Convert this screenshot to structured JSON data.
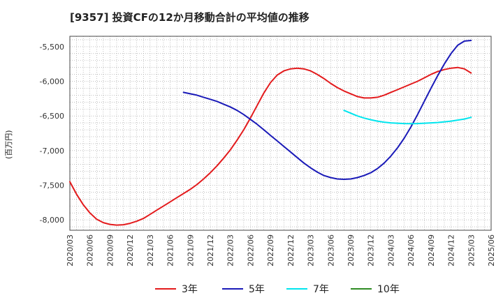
{
  "title": "[9357]  投資CFの12か月移動合計の平均値の推移",
  "y_unit_label": "(百万円)",
  "chart_data": {
    "type": "line",
    "title": "[9357]  投資CFの12か月移動合計の平均値の推移",
    "ylabel": "(百万円)",
    "ylim": [
      -8150,
      -5350
    ],
    "y_ticks": [
      -5500,
      -6000,
      -6500,
      -7000,
      -7500,
      -8000
    ],
    "y_tick_labels": [
      "-5,500",
      "-6,000",
      "-6,500",
      "-7,000",
      "-7,500",
      "-8,000"
    ],
    "x_tick_labels": [
      "2020/03",
      "2020/06",
      "2020/09",
      "2020/12",
      "2021/03",
      "2021/06",
      "2021/09",
      "2021/12",
      "2022/03",
      "2022/06",
      "2022/09",
      "2022/12",
      "2023/03",
      "2023/06",
      "2023/09",
      "2023/12",
      "2024/03",
      "2024/06",
      "2024/09",
      "2024/12",
      "2025/03",
      "2025/06"
    ],
    "grid": true,
    "legend_position": "bottom",
    "series": [
      {
        "name": "3年",
        "color": "#e31a1c",
        "points": [
          [
            "2020/03",
            -7450
          ],
          [
            "2020/04",
            -7630
          ],
          [
            "2020/05",
            -7780
          ],
          [
            "2020/06",
            -7900
          ],
          [
            "2020/07",
            -7990
          ],
          [
            "2020/08",
            -8040
          ],
          [
            "2020/09",
            -8065
          ],
          [
            "2020/10",
            -8075
          ],
          [
            "2020/11",
            -8070
          ],
          [
            "2020/12",
            -8050
          ],
          [
            "2021/01",
            -8020
          ],
          [
            "2021/02",
            -7980
          ],
          [
            "2021/03",
            -7920
          ],
          [
            "2021/04",
            -7860
          ],
          [
            "2021/05",
            -7800
          ],
          [
            "2021/06",
            -7740
          ],
          [
            "2021/07",
            -7680
          ],
          [
            "2021/08",
            -7620
          ],
          [
            "2021/09",
            -7560
          ],
          [
            "2021/10",
            -7490
          ],
          [
            "2021/11",
            -7410
          ],
          [
            "2021/12",
            -7320
          ],
          [
            "2022/01",
            -7220
          ],
          [
            "2022/02",
            -7110
          ],
          [
            "2022/03",
            -6990
          ],
          [
            "2022/04",
            -6850
          ],
          [
            "2022/05",
            -6700
          ],
          [
            "2022/06",
            -6530
          ],
          [
            "2022/07",
            -6350
          ],
          [
            "2022/08",
            -6170
          ],
          [
            "2022/09",
            -6020
          ],
          [
            "2022/10",
            -5910
          ],
          [
            "2022/11",
            -5850
          ],
          [
            "2022/12",
            -5820
          ],
          [
            "2023/01",
            -5810
          ],
          [
            "2023/02",
            -5820
          ],
          [
            "2023/03",
            -5850
          ],
          [
            "2023/04",
            -5900
          ],
          [
            "2023/05",
            -5960
          ],
          [
            "2023/06",
            -6030
          ],
          [
            "2023/07",
            -6090
          ],
          [
            "2023/08",
            -6140
          ],
          [
            "2023/09",
            -6180
          ],
          [
            "2023/10",
            -6220
          ],
          [
            "2023/11",
            -6240
          ],
          [
            "2023/12",
            -6240
          ],
          [
            "2024/01",
            -6230
          ],
          [
            "2024/02",
            -6200
          ],
          [
            "2024/03",
            -6160
          ],
          [
            "2024/04",
            -6120
          ],
          [
            "2024/05",
            -6080
          ],
          [
            "2024/06",
            -6040
          ],
          [
            "2024/07",
            -6000
          ],
          [
            "2024/08",
            -5950
          ],
          [
            "2024/09",
            -5900
          ],
          [
            "2024/10",
            -5860
          ],
          [
            "2024/11",
            -5830
          ],
          [
            "2024/12",
            -5810
          ],
          [
            "2025/01",
            -5800
          ],
          [
            "2025/02",
            -5820
          ],
          [
            "2025/03",
            -5880
          ]
        ]
      },
      {
        "name": "5年",
        "color": "#1a1ab8",
        "points": [
          [
            "2021/08",
            -6160
          ],
          [
            "2021/09",
            -6180
          ],
          [
            "2021/10",
            -6200
          ],
          [
            "2021/11",
            -6230
          ],
          [
            "2021/12",
            -6260
          ],
          [
            "2022/01",
            -6290
          ],
          [
            "2022/02",
            -6330
          ],
          [
            "2022/03",
            -6370
          ],
          [
            "2022/04",
            -6420
          ],
          [
            "2022/05",
            -6480
          ],
          [
            "2022/06",
            -6550
          ],
          [
            "2022/07",
            -6620
          ],
          [
            "2022/08",
            -6700
          ],
          [
            "2022/09",
            -6780
          ],
          [
            "2022/10",
            -6860
          ],
          [
            "2022/11",
            -6940
          ],
          [
            "2022/12",
            -7020
          ],
          [
            "2023/01",
            -7100
          ],
          [
            "2023/02",
            -7180
          ],
          [
            "2023/03",
            -7250
          ],
          [
            "2023/04",
            -7310
          ],
          [
            "2023/05",
            -7360
          ],
          [
            "2023/06",
            -7390
          ],
          [
            "2023/07",
            -7410
          ],
          [
            "2023/08",
            -7415
          ],
          [
            "2023/09",
            -7410
          ],
          [
            "2023/10",
            -7390
          ],
          [
            "2023/11",
            -7360
          ],
          [
            "2023/12",
            -7320
          ],
          [
            "2024/01",
            -7260
          ],
          [
            "2024/02",
            -7180
          ],
          [
            "2024/03",
            -7080
          ],
          [
            "2024/04",
            -6960
          ],
          [
            "2024/05",
            -6820
          ],
          [
            "2024/06",
            -6660
          ],
          [
            "2024/07",
            -6480
          ],
          [
            "2024/08",
            -6290
          ],
          [
            "2024/09",
            -6100
          ],
          [
            "2024/10",
            -5920
          ],
          [
            "2024/11",
            -5750
          ],
          [
            "2024/12",
            -5600
          ],
          [
            "2025/01",
            -5480
          ],
          [
            "2025/02",
            -5420
          ],
          [
            "2025/03",
            -5410
          ]
        ]
      },
      {
        "name": "7年",
        "color": "#00e5ee",
        "points": [
          [
            "2023/08",
            -6420
          ],
          [
            "2023/09",
            -6460
          ],
          [
            "2023/10",
            -6500
          ],
          [
            "2023/11",
            -6530
          ],
          [
            "2023/12",
            -6555
          ],
          [
            "2024/01",
            -6575
          ],
          [
            "2024/02",
            -6590
          ],
          [
            "2024/03",
            -6600
          ],
          [
            "2024/04",
            -6605
          ],
          [
            "2024/05",
            -6610
          ],
          [
            "2024/06",
            -6612
          ],
          [
            "2024/07",
            -6610
          ],
          [
            "2024/08",
            -6605
          ],
          [
            "2024/09",
            -6600
          ],
          [
            "2024/10",
            -6595
          ],
          [
            "2024/11",
            -6585
          ],
          [
            "2024/12",
            -6575
          ],
          [
            "2025/01",
            -6560
          ],
          [
            "2025/02",
            -6545
          ],
          [
            "2025/03",
            -6520
          ]
        ]
      },
      {
        "name": "10年",
        "color": "#2e8b22",
        "points": []
      }
    ]
  }
}
